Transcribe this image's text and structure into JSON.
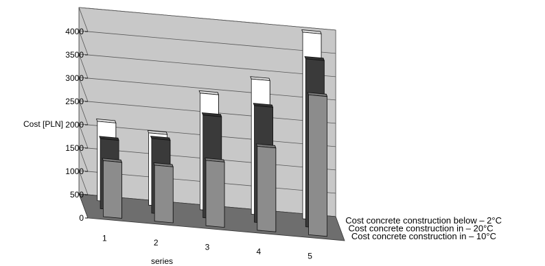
{
  "chart_data": {
    "type": "bar",
    "title": "",
    "xlabel": "series",
    "ylabel": "Cost [PLN]",
    "ylim": [
      0,
      4000
    ],
    "yticks": [
      "0",
      "500",
      "1000",
      "1500",
      "2000",
      "2500",
      "3000",
      "3500",
      "4000"
    ],
    "categories": [
      "1",
      "2",
      "3",
      "4",
      "5"
    ],
    "grid": true,
    "series": [
      {
        "name": "Cost concrete construction in – 10°C",
        "color": "#8c8c8c",
        "values": [
          1200,
          1200,
          1400,
          1800,
          3000
        ]
      },
      {
        "name": "Cost concrete construction in – 20°C",
        "color": "#3a3a3a",
        "values": [
          1500,
          1600,
          2200,
          2500,
          3600
        ]
      },
      {
        "name": "Cost concrete construction below – 2°C",
        "color": "#ffffff",
        "values": [
          1700,
          1550,
          2500,
          2900,
          4000
        ]
      }
    ]
  }
}
